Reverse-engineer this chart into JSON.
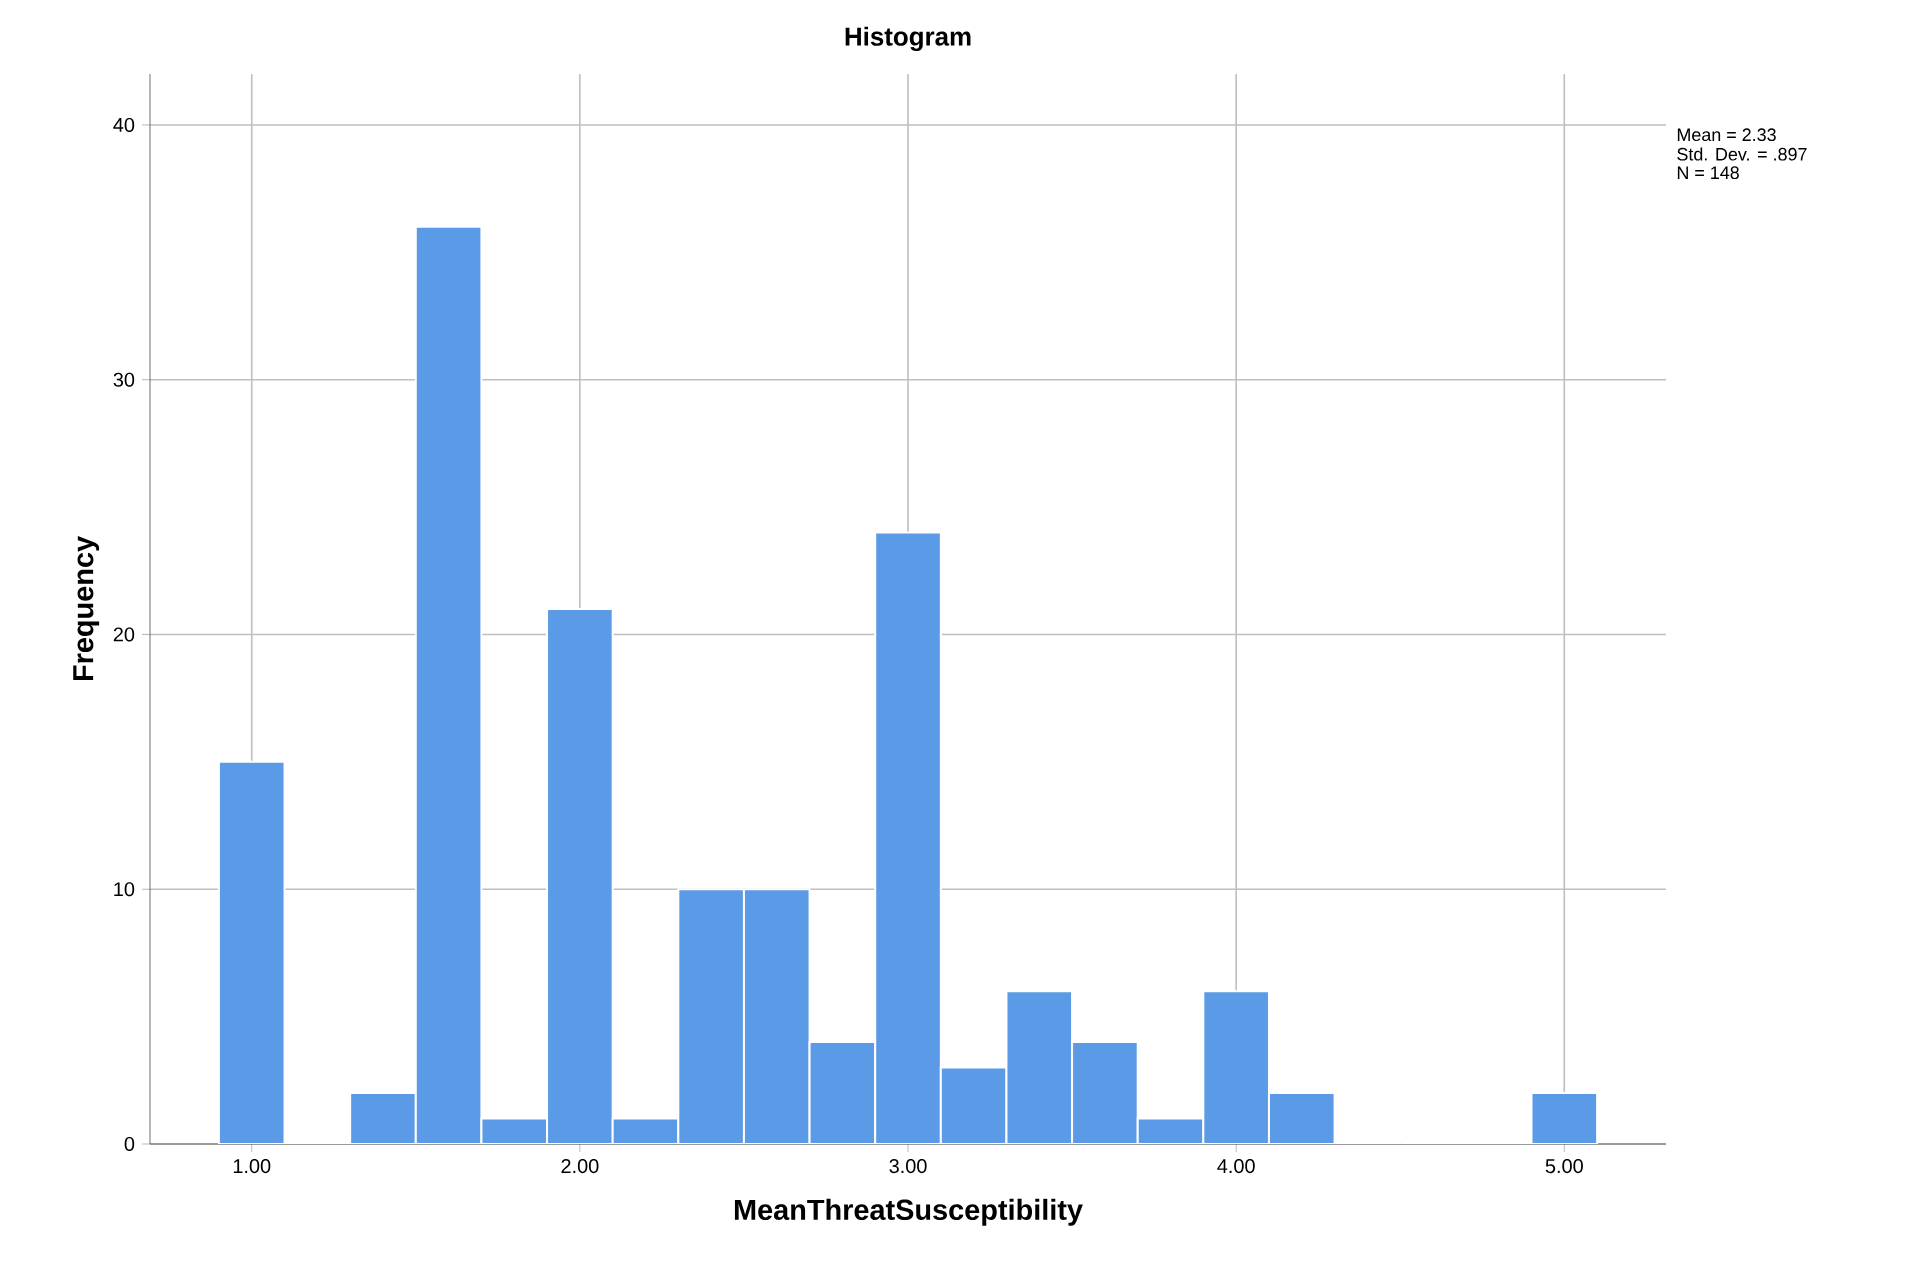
{
  "chart_data": {
    "type": "histogram",
    "title": "Histogram",
    "xlabel": "MeanThreatSusceptibility",
    "ylabel": "Frequency",
    "bins": [
      0.9,
      1.1,
      1.3,
      1.5,
      1.7,
      1.9,
      2.1,
      2.3,
      2.5,
      2.7,
      2.9,
      3.1,
      3.3,
      3.5,
      3.7,
      3.9,
      4.1,
      4.3,
      4.5,
      4.7,
      4.9,
      5.1
    ],
    "values": [
      15,
      0,
      2,
      36,
      1,
      21,
      1,
      10,
      10,
      4,
      24,
      3,
      6,
      4,
      1,
      6,
      2,
      0,
      0,
      0,
      2
    ],
    "color": "#5b9ae6",
    "xlim": [
      0.69,
      5.31
    ],
    "ylim": [
      0,
      42
    ],
    "xticks": [
      {
        "value": 1,
        "label": "1.00"
      },
      {
        "value": 2,
        "label": "2.00"
      },
      {
        "value": 3,
        "label": "3.00"
      },
      {
        "value": 4,
        "label": "4.00"
      },
      {
        "value": 5,
        "label": "5.00"
      }
    ],
    "yticks": [
      0,
      10,
      20,
      30,
      40
    ],
    "grid": true,
    "annotations": [
      "Mean = 2.33",
      "Std. Dev. = .897",
      "N = 148"
    ]
  }
}
